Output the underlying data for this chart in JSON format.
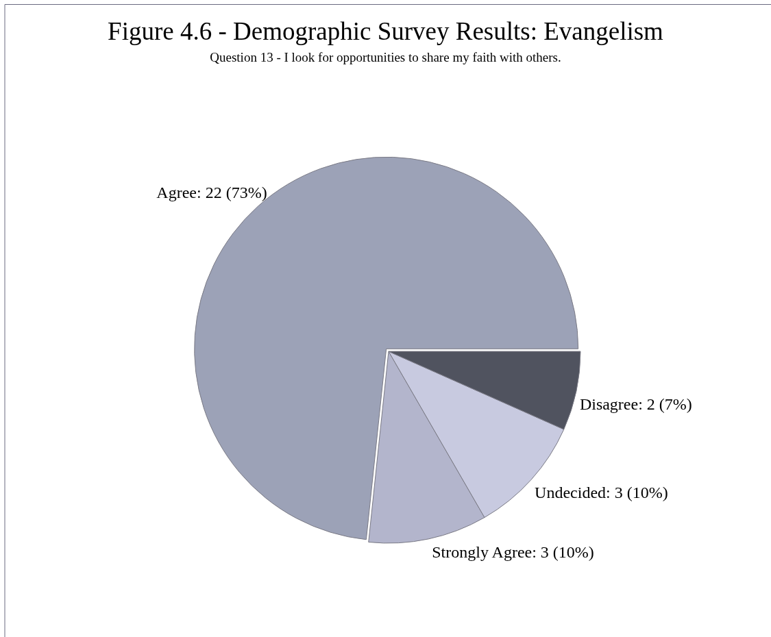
{
  "chart_data": {
    "type": "pie",
    "title": "Figure 4.6 - Demographic Survey Results: Evangelism",
    "subtitle": "Question 13 - I look for opportunities to share my faith with others.",
    "categories": [
      "Agree",
      "Strongly Agree",
      "Undecided",
      "Disagree"
    ],
    "values": [
      22,
      3,
      3,
      2
    ],
    "value_labels": [
      "22 (73%)",
      "3 (10%)",
      "3 (10%)",
      "2 (7%)"
    ],
    "colors": [
      "#9ca2b7",
      "#b3b5cc",
      "#c8cae0",
      "#50535f"
    ]
  }
}
